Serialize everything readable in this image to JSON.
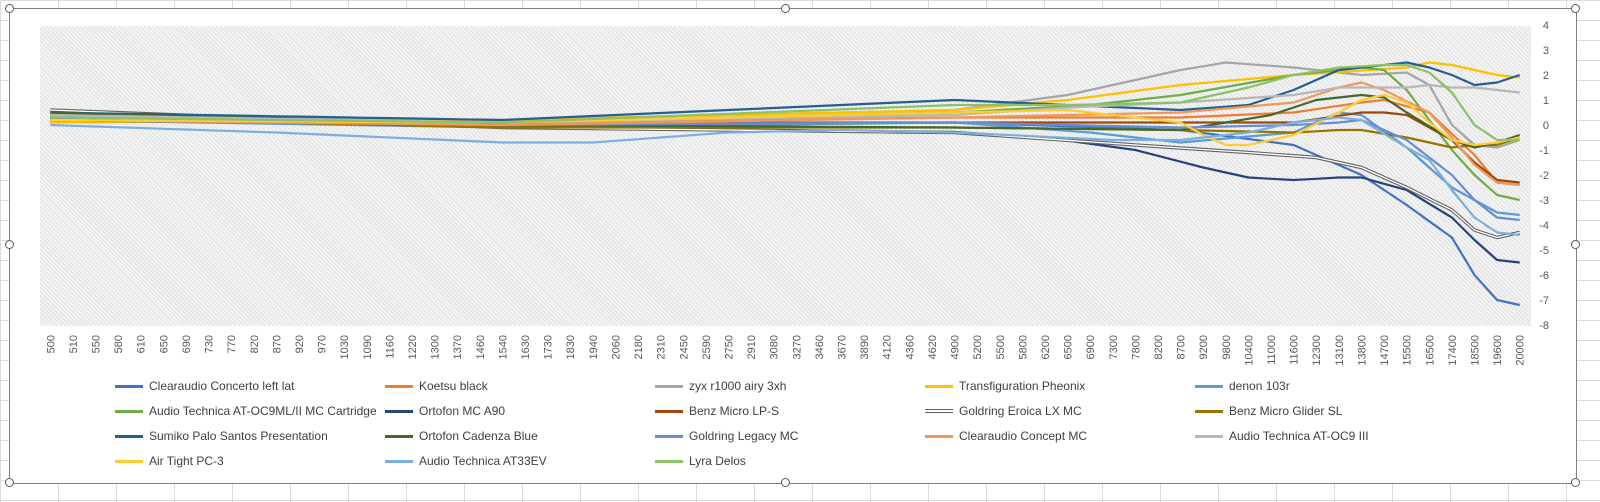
{
  "chart_data": {
    "type": "line",
    "x": [
      "500",
      "510",
      "550",
      "580",
      "610",
      "650",
      "690",
      "730",
      "770",
      "820",
      "870",
      "920",
      "970",
      "1030",
      "1090",
      "1160",
      "1220",
      "1300",
      "1370",
      "1460",
      "1540",
      "1630",
      "1730",
      "1830",
      "1940",
      "2060",
      "2180",
      "2310",
      "2450",
      "2590",
      "2750",
      "2910",
      "3080",
      "3270",
      "3460",
      "3670",
      "3890",
      "4120",
      "4360",
      "4620",
      "4900",
      "5200",
      "5500",
      "5800",
      "6200",
      "6500",
      "6900",
      "7300",
      "7800",
      "8200",
      "8700",
      "9200",
      "9800",
      "10400",
      "11000",
      "11600",
      "12300",
      "13100",
      "13800",
      "14700",
      "15500",
      "16500",
      "17400",
      "18500",
      "19600",
      "20000"
    ],
    "xlabel": "",
    "ylabel": "",
    "ylim": [
      -8,
      4
    ],
    "yticks": [
      "4",
      "3",
      "2",
      "1",
      "0",
      "-1",
      "-2",
      "-3",
      "-4",
      "-5",
      "-6",
      "-7",
      "-8"
    ],
    "grid": "patterned background",
    "legend_position": "bottom",
    "series": [
      {
        "name": "Clearaudio Concerto left lat",
        "color": "#4472c4",
        "style": "solid",
        "anchors": [
          [
            0,
            0.3
          ],
          [
            20,
            0.1
          ],
          [
            40,
            0.1
          ],
          [
            50,
            -0.2
          ],
          [
            55,
            -0.8
          ],
          [
            58,
            -2
          ],
          [
            60,
            -3.2
          ],
          [
            62,
            -4.5
          ],
          [
            63,
            -6
          ],
          [
            64,
            -7
          ],
          [
            65,
            -7.2
          ]
        ]
      },
      {
        "name": "Koetsu black",
        "color": "#ed7d31",
        "style": "solid",
        "anchors": [
          [
            0,
            0.2
          ],
          [
            20,
            0.1
          ],
          [
            40,
            0.3
          ],
          [
            50,
            0.3
          ],
          [
            55,
            0.5
          ],
          [
            58,
            0.9
          ],
          [
            59,
            1
          ],
          [
            61,
            0.5
          ],
          [
            63,
            -1.2
          ],
          [
            64,
            -2.3
          ],
          [
            65,
            -2.4
          ]
        ]
      },
      {
        "name": "zyx r1000 airy 3xh",
        "color": "#a5a5a5",
        "style": "solid",
        "anchors": [
          [
            0,
            0.4
          ],
          [
            20,
            0.2
          ],
          [
            40,
            0.6
          ],
          [
            45,
            1.2
          ],
          [
            50,
            2.2
          ],
          [
            52,
            2.5
          ],
          [
            55,
            2.3
          ],
          [
            58,
            2
          ],
          [
            60,
            2.1
          ],
          [
            61,
            1.6
          ],
          [
            62,
            0
          ],
          [
            63,
            -0.8
          ],
          [
            64,
            -0.9
          ],
          [
            65,
            -0.6
          ]
        ]
      },
      {
        "name": "Transfiguration Pheonix",
        "color": "#ffc000",
        "style": "solid",
        "anchors": [
          [
            0,
            0.1
          ],
          [
            20,
            0.2
          ],
          [
            40,
            0.6
          ],
          [
            45,
            1
          ],
          [
            50,
            1.6
          ],
          [
            55,
            2
          ],
          [
            60,
            2.3
          ],
          [
            61,
            2.5
          ],
          [
            62,
            2.4
          ],
          [
            63,
            2.2
          ],
          [
            64,
            2
          ],
          [
            65,
            1.9
          ]
        ]
      },
      {
        "name": "denon 103r",
        "color": "#5b9bd5",
        "style": "solid",
        "anchors": [
          [
            0,
            0.2
          ],
          [
            20,
            -0.1
          ],
          [
            40,
            0.1
          ],
          [
            46,
            -0.3
          ],
          [
            50,
            -0.7
          ],
          [
            55,
            -0.3
          ],
          [
            57,
            0.5
          ],
          [
            58,
            0.4
          ],
          [
            60,
            -0.9
          ],
          [
            62,
            -2.5
          ],
          [
            64,
            -3.5
          ],
          [
            65,
            -3.6
          ]
        ]
      },
      {
        "name": "Audio Technica AT-OC9ML/II MC Cartridge",
        "color": "#70ad47",
        "style": "solid",
        "anchors": [
          [
            0,
            0.3
          ],
          [
            20,
            0.1
          ],
          [
            40,
            0.5
          ],
          [
            46,
            0.8
          ],
          [
            50,
            1.2
          ],
          [
            55,
            2
          ],
          [
            58,
            2.3
          ],
          [
            59,
            2.2
          ],
          [
            60,
            1.4
          ],
          [
            62,
            -1
          ],
          [
            63,
            -2
          ],
          [
            64,
            -2.8
          ],
          [
            65,
            -3
          ]
        ]
      },
      {
        "name": "Ortofon MC A90",
        "color": "#264478",
        "style": "solid",
        "anchors": [
          [
            0,
            0.5
          ],
          [
            20,
            -0.1
          ],
          [
            40,
            -0.3
          ],
          [
            44,
            -0.5
          ],
          [
            48,
            -1
          ],
          [
            51,
            -1.7
          ],
          [
            53,
            -2.1
          ],
          [
            55,
            -2.2
          ],
          [
            57,
            -2.1
          ],
          [
            58,
            -2.1
          ],
          [
            60,
            -2.6
          ],
          [
            62,
            -3.7
          ],
          [
            63,
            -4.6
          ],
          [
            64,
            -5.4
          ],
          [
            65,
            -5.5
          ]
        ]
      },
      {
        "name": "Benz Micro LP-S",
        "color": "#9e480e",
        "style": "solid",
        "anchors": [
          [
            0,
            0.2
          ],
          [
            20,
            0
          ],
          [
            40,
            0.1
          ],
          [
            50,
            0.1
          ],
          [
            55,
            0.1
          ],
          [
            58,
            0.5
          ],
          [
            59,
            0.5
          ],
          [
            60,
            0.4
          ],
          [
            62,
            -0.6
          ],
          [
            63,
            -1.5
          ],
          [
            64,
            -2.2
          ],
          [
            65,
            -2.3
          ]
        ]
      },
      {
        "name": "Goldring Eroica LX MC",
        "color": "#636363",
        "style": "double",
        "anchors": [
          [
            0,
            0.6
          ],
          [
            20,
            -0.1
          ],
          [
            40,
            -0.3
          ],
          [
            48,
            -0.8
          ],
          [
            53,
            -1.1
          ],
          [
            56,
            -1.3
          ],
          [
            58,
            -1.7
          ],
          [
            60,
            -2.5
          ],
          [
            62,
            -3.4
          ],
          [
            63,
            -4.2
          ],
          [
            64,
            -4.5
          ],
          [
            65,
            -4.3
          ]
        ]
      },
      {
        "name": "Benz Micro Glider SL",
        "color": "#997300",
        "style": "solid",
        "anchors": [
          [
            0,
            0.3
          ],
          [
            20,
            -0.1
          ],
          [
            40,
            -0.1
          ],
          [
            50,
            -0.2
          ],
          [
            55,
            -0.3
          ],
          [
            57,
            -0.2
          ],
          [
            58,
            -0.2
          ],
          [
            60,
            -0.5
          ],
          [
            62,
            -0.9
          ],
          [
            63,
            -0.8
          ],
          [
            64,
            -0.8
          ],
          [
            65,
            -0.5
          ]
        ]
      },
      {
        "name": "Sumiko Palo Santos Presentation",
        "color": "#255e91",
        "style": "solid",
        "anchors": [
          [
            0,
            0.5
          ],
          [
            20,
            0.2
          ],
          [
            30,
            0.6
          ],
          [
            40,
            1
          ],
          [
            50,
            0.6
          ],
          [
            53,
            0.8
          ],
          [
            55,
            1.4
          ],
          [
            57,
            2.2
          ],
          [
            59,
            2.4
          ],
          [
            60,
            2.5
          ],
          [
            61,
            2.3
          ],
          [
            62,
            2
          ],
          [
            63,
            1.6
          ],
          [
            64,
            1.7
          ],
          [
            65,
            2
          ]
        ]
      },
      {
        "name": "Ortofon Cadenza Blue",
        "color": "#43682b",
        "style": "solid",
        "anchors": [
          [
            0,
            0.5
          ],
          [
            20,
            0
          ],
          [
            40,
            -0.1
          ],
          [
            50,
            -0.2
          ],
          [
            54,
            0.4
          ],
          [
            56,
            1
          ],
          [
            58,
            1.2
          ],
          [
            59,
            1.1
          ],
          [
            60,
            0.5
          ],
          [
            62,
            -0.6
          ],
          [
            63,
            -0.9
          ],
          [
            64,
            -0.7
          ],
          [
            65,
            -0.4
          ]
        ]
      },
      {
        "name": "Goldring Legacy MC",
        "color": "#698ed0",
        "style": "solid",
        "anchors": [
          [
            0,
            0.3
          ],
          [
            20,
            0
          ],
          [
            40,
            0.1
          ],
          [
            50,
            -0.1
          ],
          [
            55,
            0
          ],
          [
            57,
            0.1
          ],
          [
            58,
            0.2
          ],
          [
            60,
            -0.6
          ],
          [
            62,
            -2
          ],
          [
            63,
            -3
          ],
          [
            64,
            -3.7
          ],
          [
            65,
            -3.8
          ]
        ]
      },
      {
        "name": "Clearaudio Concept MC",
        "color": "#f1975a",
        "style": "solid",
        "anchors": [
          [
            0,
            0.2
          ],
          [
            20,
            0
          ],
          [
            40,
            0.3
          ],
          [
            50,
            0.5
          ],
          [
            55,
            0.9
          ],
          [
            57,
            1.5
          ],
          [
            58,
            1.7
          ],
          [
            59,
            1.4
          ],
          [
            61,
            0.5
          ],
          [
            62,
            -0.5
          ],
          [
            63,
            -1.6
          ],
          [
            64,
            -2.3
          ],
          [
            65,
            -2.4
          ]
        ]
      },
      {
        "name": "Audio Technica AT-OC9 III",
        "color": "#b7b7b7",
        "style": "solid",
        "anchors": [
          [
            0,
            0.4
          ],
          [
            20,
            0.1
          ],
          [
            40,
            0.4
          ],
          [
            45,
            0.7
          ],
          [
            50,
            0.9
          ],
          [
            55,
            1.2
          ],
          [
            57,
            1.5
          ],
          [
            59,
            1.5
          ],
          [
            60,
            1.5
          ],
          [
            61,
            1.6
          ],
          [
            62,
            1.5
          ],
          [
            63,
            1.5
          ],
          [
            64,
            1.4
          ],
          [
            65,
            1.3
          ]
        ]
      },
      {
        "name": "Air Tight PC-3",
        "color": "#ffcd33",
        "style": "solid",
        "anchors": [
          [
            0,
            0.2
          ],
          [
            20,
            0.1
          ],
          [
            40,
            0.5
          ],
          [
            45,
            0.6
          ],
          [
            50,
            0.1
          ],
          [
            51,
            -0.4
          ],
          [
            52,
            -0.8
          ],
          [
            53,
            -0.8
          ],
          [
            55,
            -0.4
          ],
          [
            57,
            0.5
          ],
          [
            58,
            1
          ],
          [
            59,
            1.2
          ],
          [
            60,
            0.9
          ],
          [
            61,
            0.1
          ],
          [
            62,
            -0.6
          ],
          [
            63,
            -0.8
          ],
          [
            64,
            -0.7
          ],
          [
            65,
            -0.5
          ]
        ]
      },
      {
        "name": "Audio Technica AT33EV",
        "color": "#7cafdd",
        "style": "solid",
        "anchors": [
          [
            0,
            0
          ],
          [
            10,
            -0.3
          ],
          [
            20,
            -0.7
          ],
          [
            24,
            -0.7
          ],
          [
            30,
            -0.3
          ],
          [
            35,
            -0.2
          ],
          [
            40,
            -0.3
          ],
          [
            47,
            -0.6
          ],
          [
            50,
            -0.6
          ],
          [
            53,
            -0.3
          ],
          [
            55,
            0.1
          ],
          [
            57,
            0.3
          ],
          [
            58,
            0.2
          ],
          [
            60,
            -0.9
          ],
          [
            61,
            -1.4
          ],
          [
            62,
            -2.6
          ],
          [
            63,
            -3.7
          ],
          [
            64,
            -4.3
          ],
          [
            65,
            -4.4
          ]
        ]
      },
      {
        "name": "Lyra Delos",
        "color": "#8cc168",
        "style": "solid",
        "anchors": [
          [
            0,
            0.3
          ],
          [
            20,
            0.1
          ],
          [
            40,
            0.8
          ],
          [
            45,
            0.8
          ],
          [
            50,
            0.9
          ],
          [
            53,
            1.5
          ],
          [
            55,
            2
          ],
          [
            57,
            2.3
          ],
          [
            59,
            2.4
          ],
          [
            60,
            2.4
          ],
          [
            61,
            2.1
          ],
          [
            62,
            1.3
          ],
          [
            63,
            0
          ],
          [
            64,
            -0.6
          ],
          [
            65,
            -0.6
          ]
        ]
      }
    ]
  }
}
